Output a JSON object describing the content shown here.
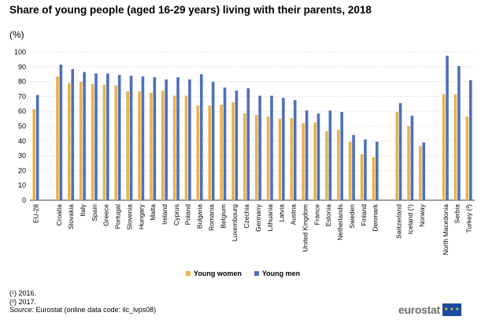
{
  "title": "Share of young people (aged 16-29 years) living with their parents, 2018",
  "unit": "(%)",
  "colors": {
    "women": "#e8b34a",
    "men": "#4e6fbb",
    "grid": "#cfcfcf"
  },
  "chart_data": {
    "type": "bar",
    "ylim": [
      0,
      100
    ],
    "yticks": [
      0,
      10,
      20,
      30,
      40,
      50,
      60,
      70,
      80,
      90,
      100
    ],
    "grid": true,
    "legend_position": "bottom",
    "categories": [
      "EU-28",
      "",
      "Croatia",
      "Slovakia",
      "Italy",
      "Spain",
      "Greece",
      "Portugal",
      "Slovenia",
      "Hungary",
      "Malta",
      "Ireland",
      "Cyprus",
      "Poland",
      "Bulgaria",
      "Romania",
      "Belgium",
      "Luxembourg",
      "Czechia",
      "Germany",
      "Lithuania",
      "Latvia",
      "Austria",
      "United Kingdom",
      "France",
      "Estonia",
      "Netherlands",
      "Sweden",
      "Finland",
      "Denmark",
      "",
      "Switzerland",
      "Iceland (¹)",
      "Norway",
      "",
      "North Macedonia",
      "Serbia",
      "Turkey (²)"
    ],
    "series": [
      {
        "name": "Young women",
        "values": [
          61.5,
          null,
          83.5,
          79,
          80,
          78.5,
          78,
          77.5,
          73.5,
          73.5,
          72.5,
          74,
          70.5,
          70.5,
          64,
          64,
          64.5,
          66,
          58.5,
          57.5,
          56.5,
          55,
          55.5,
          52,
          52.5,
          46.5,
          47.5,
          39.5,
          31,
          29,
          null,
          59.5,
          50,
          36.5,
          null,
          71.5,
          71.5,
          56.5
        ]
      },
      {
        "name": "Young men",
        "values": [
          71,
          null,
          91.5,
          88.5,
          86.5,
          85.5,
          85.5,
          84.5,
          84,
          83.5,
          83,
          81.5,
          83,
          81.5,
          85,
          80,
          76,
          74,
          75.5,
          70.5,
          70.5,
          69,
          67.5,
          60.5,
          58.5,
          60.5,
          59.5,
          44,
          41,
          39.5,
          null,
          65.5,
          57,
          39,
          null,
          97.5,
          90.5,
          81
        ]
      }
    ]
  },
  "legend": {
    "women_label": "Young women",
    "men_label": "Young men"
  },
  "notes": {
    "note1": "(¹) 2016.",
    "note2": "(²) 2017.",
    "source_label": "Source:",
    "source_text": " Eurostat (online data code: ilc_lvps08)"
  },
  "logo": {
    "text": "eurostat"
  }
}
